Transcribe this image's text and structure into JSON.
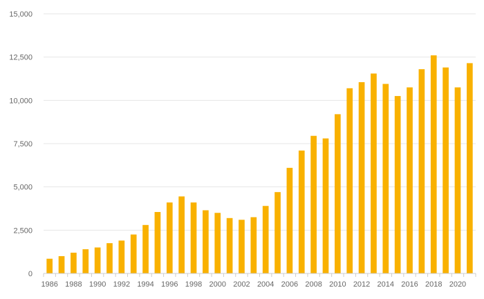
{
  "chart_data": {
    "type": "bar",
    "title": "",
    "xlabel": "",
    "ylabel": "",
    "ylim": [
      0,
      15000
    ],
    "yticks": [
      "0",
      "2,500",
      "5,000",
      "7,500",
      "10,000",
      "12,500",
      "15,000"
    ],
    "grid": true,
    "bar_color": "#f9b100",
    "categories": [
      1986,
      1987,
      1988,
      1989,
      1990,
      1991,
      1992,
      1993,
      1994,
      1995,
      1996,
      1997,
      1998,
      1999,
      2000,
      2001,
      2002,
      2003,
      2004,
      2005,
      2006,
      2007,
      2008,
      2009,
      2010,
      2011,
      2012,
      2013,
      2014,
      2015,
      2016,
      2017,
      2018,
      2019,
      2020,
      2021
    ],
    "xtick_labels": [
      "1986",
      "1988",
      "1990",
      "1992",
      "1994",
      "1996",
      "1998",
      "2000",
      "2002",
      "2004",
      "2006",
      "2008",
      "2010",
      "2012",
      "2014",
      "2016",
      "2018",
      "2020"
    ],
    "values": [
      850,
      1000,
      1200,
      1400,
      1500,
      1750,
      1900,
      2250,
      2800,
      3550,
      4100,
      4450,
      4100,
      3650,
      3500,
      3200,
      3100,
      3250,
      3900,
      4700,
      6100,
      7100,
      7950,
      7800,
      9200,
      10700,
      11050,
      11550,
      10950,
      10250,
      10750,
      11800,
      12600,
      11900,
      10750,
      12150
    ]
  }
}
